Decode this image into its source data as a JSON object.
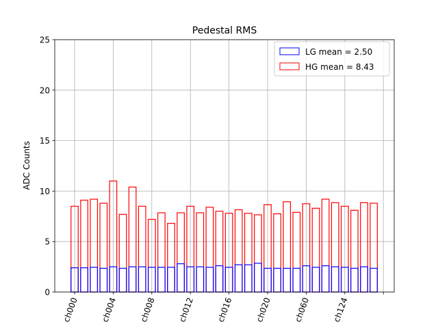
{
  "chart_data": {
    "type": "bar",
    "title": "Pedestal RMS",
    "xlabel": "",
    "ylabel": "ADC Counts",
    "ylim": [
      0,
      25
    ],
    "yticks": [
      0,
      5,
      10,
      15,
      20,
      25
    ],
    "xtick_labels": [
      "ch000",
      "ch004",
      "ch008",
      "ch012",
      "ch016",
      "ch020",
      "ch060",
      "ch124"
    ],
    "grid": true,
    "legend_position": "top-right",
    "series": [
      {
        "name": "LG mean = 2.50",
        "color": "#0000ff",
        "fill": "#ffffff",
        "values": [
          2.4,
          2.4,
          2.45,
          2.35,
          2.5,
          2.35,
          2.5,
          2.5,
          2.45,
          2.45,
          2.45,
          2.8,
          2.5,
          2.5,
          2.45,
          2.6,
          2.45,
          2.7,
          2.7,
          2.85,
          2.35,
          2.35,
          2.35,
          2.35,
          2.6,
          2.45,
          2.6,
          2.5,
          2.45,
          2.35,
          2.5,
          2.35
        ]
      },
      {
        "name": "HG mean = 8.43",
        "color": "#ff0000",
        "fill": "#ffffff",
        "values": [
          8.5,
          9.1,
          9.2,
          8.8,
          11.0,
          7.7,
          10.4,
          8.5,
          7.2,
          7.85,
          6.8,
          7.85,
          8.5,
          7.85,
          8.4,
          8.0,
          7.8,
          8.15,
          7.8,
          7.65,
          8.65,
          7.75,
          8.95,
          7.9,
          8.75,
          8.3,
          9.2,
          8.85,
          8.5,
          8.1,
          8.85,
          8.8
        ]
      }
    ]
  }
}
